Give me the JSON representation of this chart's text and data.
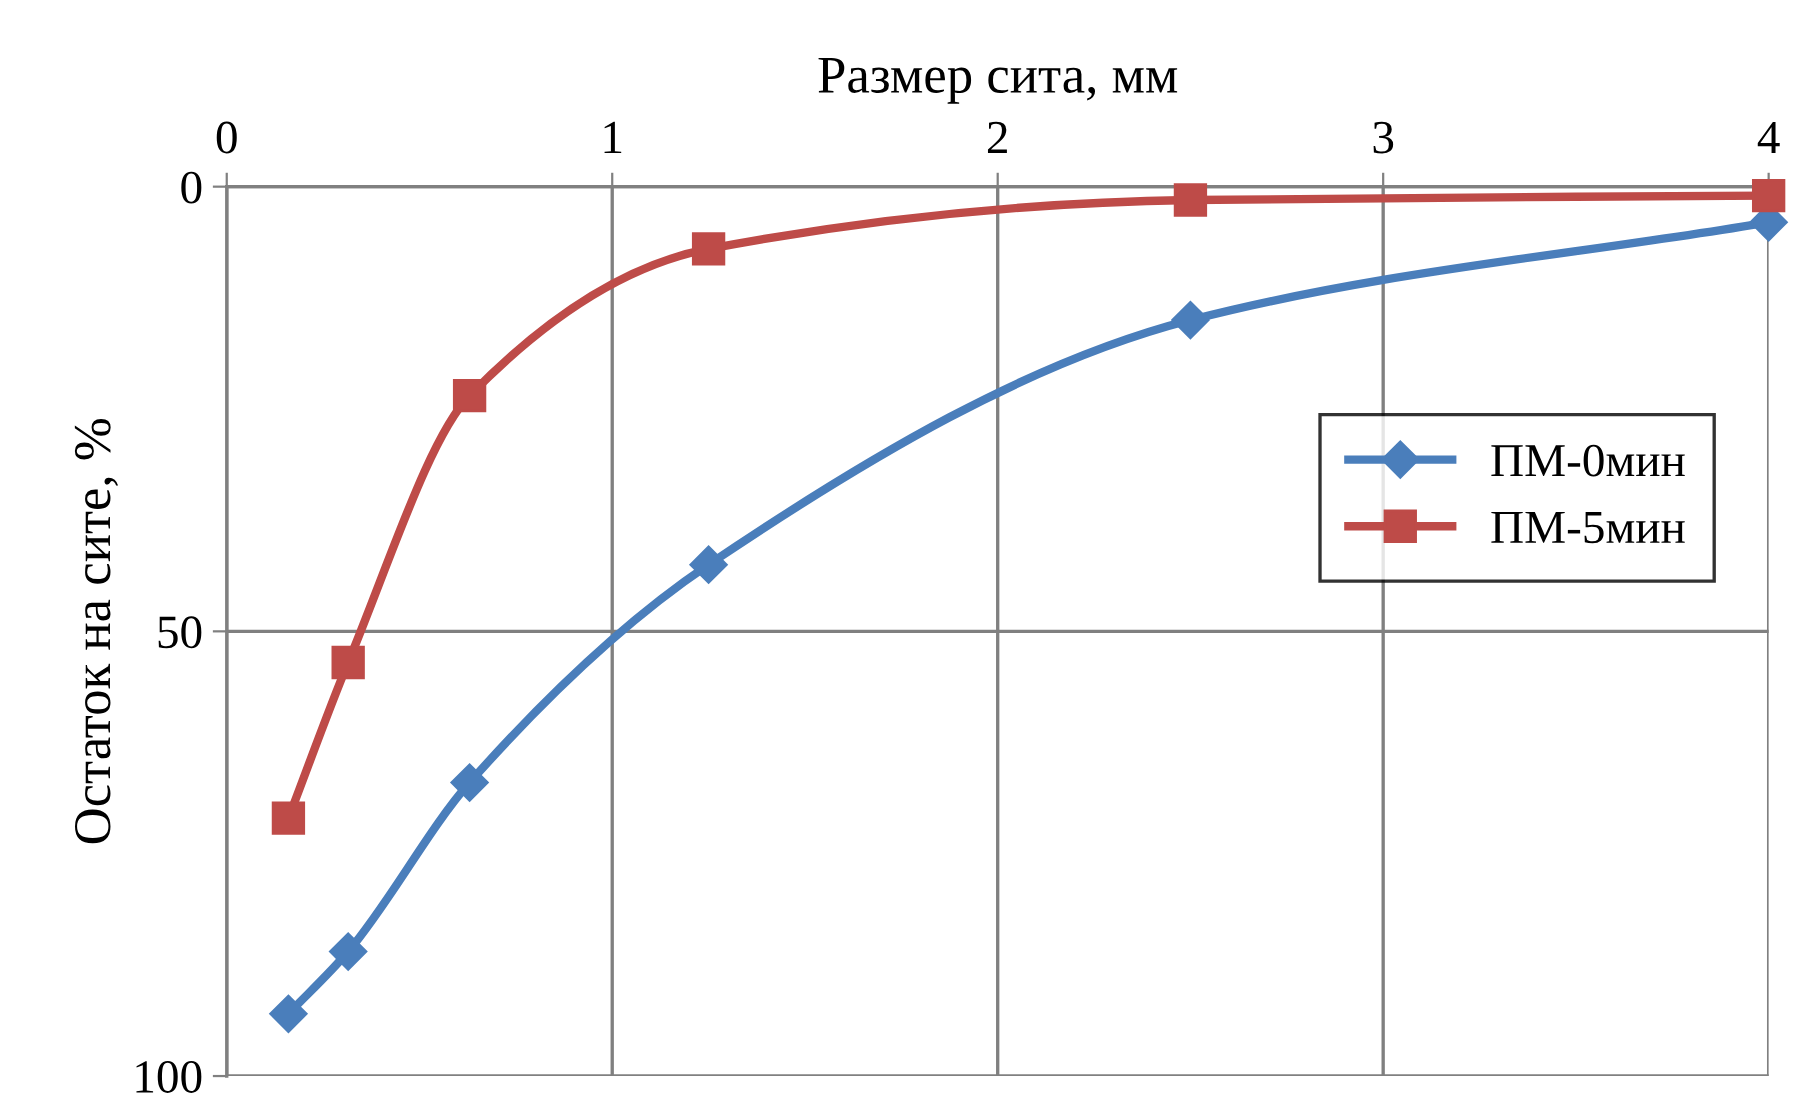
{
  "chart_data": {
    "type": "line",
    "xlabel": "Размер сита, мм",
    "ylabel": "Остаток на сите, %",
    "xlim": [
      0,
      4
    ],
    "xticks": [
      0,
      1,
      2,
      3,
      4
    ],
    "ylim": [
      100,
      0
    ],
    "yticks": [
      0,
      50,
      100
    ],
    "grid": true,
    "legend": "right",
    "series": [
      {
        "name": "ПМ-0мин",
        "color": "#4a7ebb",
        "marker": "diamond",
        "x": [
          0.16,
          0.315,
          0.63,
          1.25,
          2.5,
          4
        ],
        "values": [
          93,
          86,
          67,
          42.5,
          15,
          4
        ]
      },
      {
        "name": "ПМ-5мин",
        "color": "#be4b48",
        "marker": "square",
        "x": [
          0.16,
          0.315,
          0.63,
          1.25,
          2.5,
          4
        ],
        "values": [
          71,
          53.5,
          23.5,
          7,
          1.5,
          1
        ]
      }
    ]
  }
}
